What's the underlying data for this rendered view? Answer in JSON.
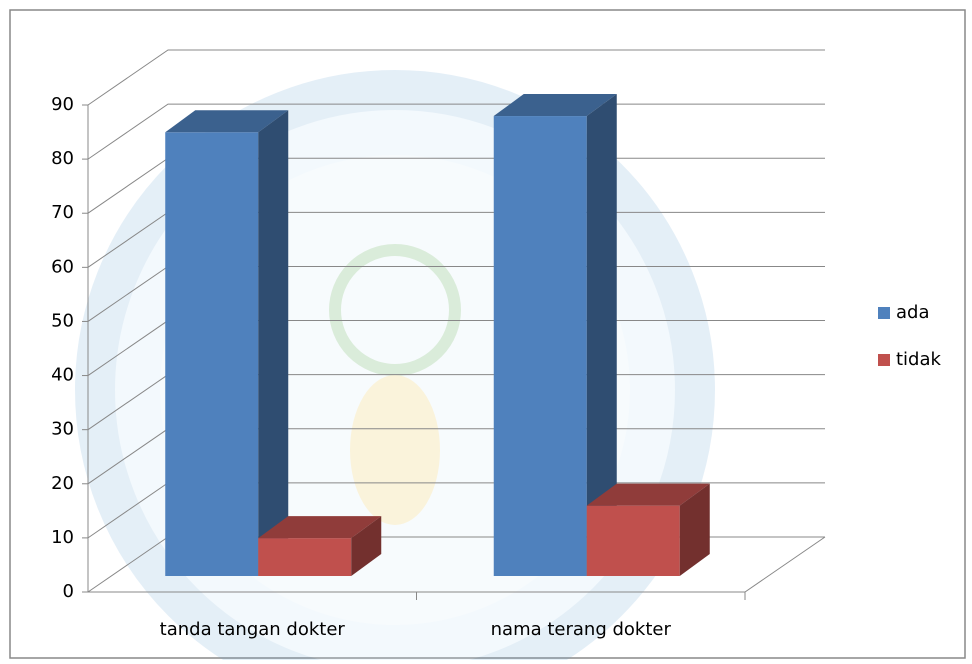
{
  "chart_data": {
    "type": "bar",
    "categories": [
      "tanda tangan dokter",
      "nama terang dokter"
    ],
    "series": [
      {
        "name": "ada",
        "color": "#4f81bd",
        "values": [
          82,
          85
        ]
      },
      {
        "name": "tidak",
        "color": "#c0504d",
        "values": [
          7,
          13
        ]
      }
    ],
    "ylim": [
      0,
      90
    ],
    "yticks": [
      0,
      10,
      20,
      30,
      40,
      50,
      60,
      70,
      80,
      90
    ],
    "grid": true,
    "legend": "right"
  }
}
